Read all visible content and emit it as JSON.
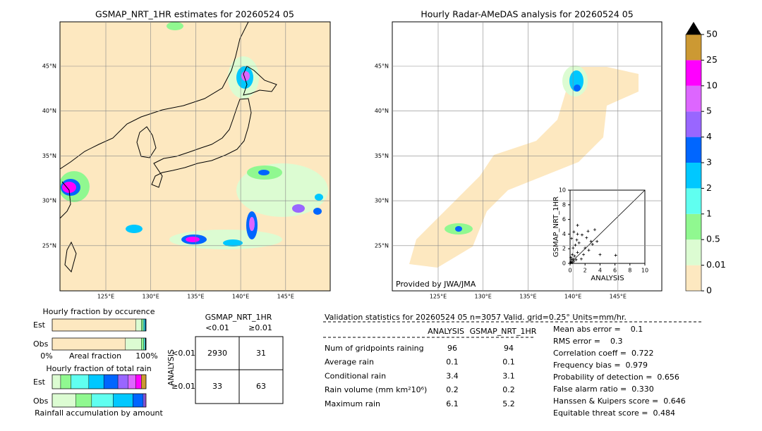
{
  "left_map": {
    "title": "GSMAP_NRT_1HR estimates for 20260524 05",
    "lat_labels": [
      "45°N",
      "40°N",
      "35°N",
      "30°N",
      "25°N"
    ],
    "lon_labels": [
      "125°E",
      "130°E",
      "135°E",
      "140°E",
      "145°E"
    ]
  },
  "right_map": {
    "title": "Hourly Radar-AMeDAS analysis for 20260524 05",
    "lat_labels": [
      "45°N",
      "40°N",
      "35°N",
      "30°N",
      "25°N"
    ],
    "lon_labels": [
      "125°E",
      "130°E",
      "135°E",
      "140°E",
      "145°E"
    ],
    "credit": "Provided by JWA/JMA"
  },
  "scatter": {
    "type": "scatter",
    "xlabel": "ANALYSIS",
    "ylabel": "GSMAP_NRT_1HR",
    "xlim": [
      0,
      10
    ],
    "ylim": [
      0,
      10
    ],
    "xticks": [
      0,
      2,
      4,
      6,
      8,
      10
    ],
    "yticks": [
      0,
      2,
      4,
      6,
      8,
      10
    ],
    "x": [
      0.1,
      0.2,
      0.3,
      0.5,
      0.4,
      0.6,
      0.8,
      1.0,
      0.2,
      0.5,
      1.2,
      1.5,
      1.8,
      2.0,
      2.2,
      2.5,
      0.3,
      0.1,
      1.0,
      0.7,
      3.0,
      3.3,
      2.8,
      4.0,
      1.6,
      3.6,
      6.1,
      1.0,
      0.9,
      2.4,
      0.1,
      0.4
    ],
    "y": [
      0.2,
      0.5,
      1.2,
      0.3,
      2.1,
      1.0,
      0.5,
      1.5,
      3.4,
      4.3,
      2.8,
      0.6,
      1.2,
      2.1,
      3.5,
      1.8,
      0.1,
      0.8,
      4.0,
      2.5,
      2.6,
      4.6,
      3.0,
      1.2,
      3.9,
      3.0,
      1.1,
      5.2,
      3.2,
      4.4,
      0.1,
      0.6
    ]
  },
  "colorbar": {
    "ticks": [
      0,
      0.01,
      0.5,
      1,
      2,
      3,
      4,
      5,
      10,
      25,
      50
    ],
    "colors": [
      "#fde8c0",
      "#dcfcd2",
      "#90f890",
      "#60fff0",
      "#00c8ff",
      "#0066ff",
      "#9966ff",
      "#dd66ff",
      "#ff00ff",
      "#cc9933"
    ],
    "extend_color": "#000000"
  },
  "occurrence": {
    "title": "Hourly fraction by occurence",
    "rows": [
      "Est",
      "Obs"
    ],
    "est": [
      89,
      6,
      2,
      1.5,
      1,
      0.5,
      0,
      0,
      0,
      0
    ],
    "obs": [
      78,
      17,
      2.5,
      1.5,
      0.5,
      0.3,
      0.2,
      0,
      0,
      0
    ],
    "axis_left": "0%",
    "axis_mid": "Areal fraction",
    "axis_right": "100%"
  },
  "total_rain": {
    "title": "Hourly fraction of total rain",
    "rows": [
      "Est",
      "Obs"
    ],
    "est": [
      0,
      9,
      11,
      19,
      16,
      15,
      11,
      8,
      6,
      5
    ],
    "obs": [
      0,
      25,
      17,
      23,
      21,
      11,
      2,
      1,
      0,
      0
    ],
    "caption": "Rainfall accumulation by amount"
  },
  "contingency": {
    "title": "GSMAP_NRT_1HR",
    "col_labels": [
      "<0.01",
      "≥0.01"
    ],
    "row_title": "ANALYSIS",
    "row_labels": [
      "<0.01",
      "≥0.01"
    ],
    "cells": [
      [
        2930,
        31
      ],
      [
        33,
        63
      ]
    ]
  },
  "validation": {
    "header": "Validation statistics for 20260524 05  n=3057 Valid. grid=0.25° Units=mm/hr.",
    "columns": [
      "ANALYSIS",
      "GSMAP_NRT_1HR"
    ],
    "rows": [
      [
        "Num of gridpoints raining",
        96,
        94
      ],
      [
        "Average rain",
        0.1,
        0.1
      ],
      [
        "Conditional rain",
        3.4,
        3.1
      ],
      [
        "Rain volume (mm km²10⁶)",
        0.2,
        0.2
      ],
      [
        "Maximum rain",
        6.1,
        5.2
      ]
    ],
    "scores": [
      "Mean abs error =    0.1",
      "RMS error =    0.3",
      "Correlation coeff =  0.722",
      "Frequency bias =  0.979",
      "Probability of detection =  0.656",
      "False alarm ratio =  0.330",
      "Hanssen & Kuipers score =  0.646",
      "Equitable threat score =  0.484"
    ]
  }
}
